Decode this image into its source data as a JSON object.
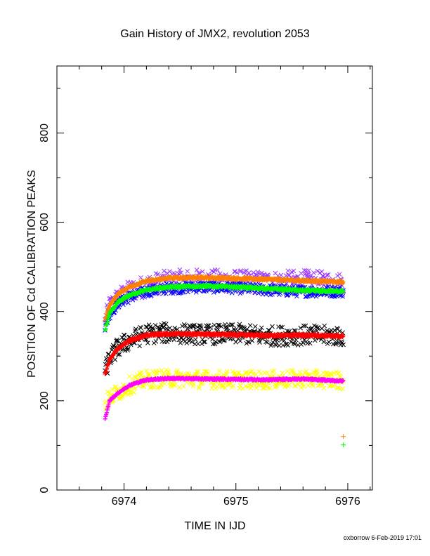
{
  "chart_data": {
    "type": "scatter",
    "title": "Gain History of JMX2, revolution 2053",
    "xlabel": "TIME IN IJD",
    "ylabel": "POSITION OF Cd CALIBRATION PEAKS",
    "xlim": [
      6973.4,
      6976.22
    ],
    "ylim": [
      0,
      950
    ],
    "x_ticks": [
      6974,
      6975,
      6976
    ],
    "y_ticks": [
      0,
      200,
      400,
      600,
      800
    ],
    "grid": false,
    "footer": "oxborrow  6-Feb-2019 17:01",
    "series": [
      {
        "color": "#9933ff",
        "marker": "x",
        "scatter": 25,
        "curve": [
          [
            6973.83,
            375
          ],
          [
            6973.87,
            410
          ],
          [
            6973.95,
            430
          ],
          [
            6974.05,
            445
          ],
          [
            6974.2,
            458
          ],
          [
            6974.4,
            468
          ],
          [
            6974.7,
            470
          ],
          [
            6975.0,
            468
          ],
          [
            6975.3,
            465
          ],
          [
            6975.6,
            468
          ],
          [
            6975.96,
            462
          ]
        ]
      },
      {
        "color": "#0000ff",
        "marker": "x",
        "scatter": 12,
        "curve": [
          [
            6973.83,
            365
          ],
          [
            6973.87,
            395
          ],
          [
            6973.95,
            420
          ],
          [
            6974.05,
            432
          ],
          [
            6974.2,
            445
          ],
          [
            6974.4,
            452
          ],
          [
            6974.7,
            455
          ],
          [
            6975.0,
            453
          ],
          [
            6975.3,
            448
          ],
          [
            6975.6,
            445
          ],
          [
            6975.96,
            445
          ]
        ]
      },
      {
        "color": "#ff8000",
        "marker": "+",
        "scatter": 3,
        "curve": [
          [
            6973.83,
            380
          ],
          [
            6973.87,
            415
          ],
          [
            6973.95,
            440
          ],
          [
            6974.05,
            455
          ],
          [
            6974.2,
            468
          ],
          [
            6974.4,
            475
          ],
          [
            6974.7,
            476
          ],
          [
            6975.0,
            474
          ],
          [
            6975.3,
            472
          ],
          [
            6975.6,
            469
          ],
          [
            6975.96,
            466
          ]
        ]
      },
      {
        "color": "#00ff00",
        "marker": "+",
        "scatter": 3,
        "curve": [
          [
            6973.83,
            357
          ],
          [
            6973.87,
            395
          ],
          [
            6973.95,
            422
          ],
          [
            6974.05,
            437
          ],
          [
            6974.2,
            448
          ],
          [
            6974.4,
            455
          ],
          [
            6974.7,
            457
          ],
          [
            6975.0,
            455
          ],
          [
            6975.3,
            451
          ],
          [
            6975.6,
            447
          ],
          [
            6975.96,
            445
          ]
        ]
      },
      {
        "color": "#000000",
        "marker": "x",
        "scatter": 22,
        "curve": [
          [
            6973.83,
            265
          ],
          [
            6973.87,
            295
          ],
          [
            6973.95,
            320
          ],
          [
            6974.05,
            335
          ],
          [
            6974.2,
            350
          ],
          [
            6974.4,
            352
          ],
          [
            6974.7,
            348
          ],
          [
            6975.0,
            350
          ],
          [
            6975.3,
            345
          ],
          [
            6975.6,
            347
          ],
          [
            6975.96,
            345
          ]
        ]
      },
      {
        "color": "#ff0000",
        "marker": "+",
        "scatter": 3,
        "curve": [
          [
            6973.83,
            258
          ],
          [
            6973.87,
            292
          ],
          [
            6973.95,
            318
          ],
          [
            6974.05,
            335
          ],
          [
            6974.2,
            347
          ],
          [
            6974.4,
            350
          ],
          [
            6974.7,
            349
          ],
          [
            6975.0,
            348
          ],
          [
            6975.3,
            346
          ],
          [
            6975.6,
            347
          ],
          [
            6975.96,
            345
          ]
        ]
      },
      {
        "color": "#ffff00",
        "marker": "x",
        "scatter": 20,
        "curve": [
          [
            6973.83,
            195
          ],
          [
            6973.87,
            205
          ],
          [
            6973.95,
            220
          ],
          [
            6974.05,
            235
          ],
          [
            6974.2,
            248
          ],
          [
            6974.4,
            250
          ],
          [
            6974.7,
            248
          ],
          [
            6975.0,
            247
          ],
          [
            6975.3,
            247
          ],
          [
            6975.6,
            249
          ],
          [
            6975.96,
            246
          ]
        ]
      },
      {
        "color": "#ff00ff",
        "marker": "+",
        "scatter": 2,
        "curve": [
          [
            6973.83,
            158
          ],
          [
            6973.87,
            200
          ],
          [
            6973.95,
            218
          ],
          [
            6974.05,
            235
          ],
          [
            6974.2,
            247
          ],
          [
            6974.4,
            250
          ],
          [
            6974.7,
            249
          ],
          [
            6975.0,
            248
          ],
          [
            6975.3,
            247
          ],
          [
            6975.6,
            249
          ],
          [
            6975.96,
            244
          ]
        ]
      }
    ],
    "outliers": [
      {
        "x": 6975.96,
        "y": 120,
        "color": "#ff8000",
        "marker": "+"
      },
      {
        "x": 6975.96,
        "y": 101,
        "color": "#00ff00",
        "marker": "+"
      }
    ]
  }
}
